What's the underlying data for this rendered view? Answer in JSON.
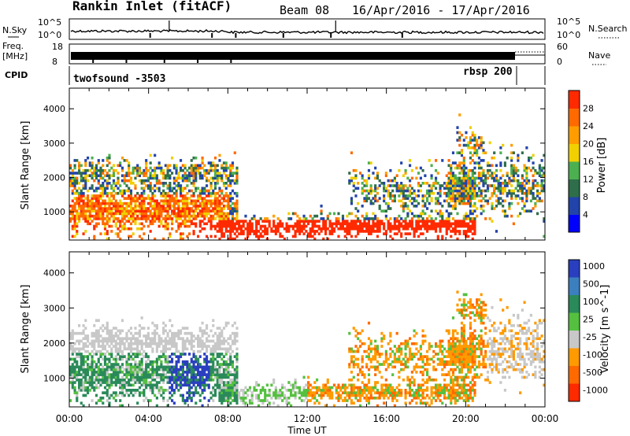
{
  "header": {
    "title": "Rankin Inlet (fitACF)",
    "beam": "Beam 08",
    "date_range": "16/Apr/2016 - 17/Apr/2016"
  },
  "status_panels": {
    "nsky_label": "N.Sky",
    "nsky_ticks": [
      "10^5",
      "10^0"
    ],
    "nsearch_label": "N.Search",
    "nsearch_ticks": [
      "10^5",
      "10^0"
    ],
    "freq_label": "Freq.",
    "freq_unit": "[MHz]",
    "freq_ticks": [
      "18",
      "8"
    ],
    "nave_label": "Nave",
    "nave_ticks": [
      "60",
      "0"
    ],
    "cpid_label": "CPID",
    "cpid_1": "twofsound -3503",
    "cpid_2": "rbsp 200"
  },
  "x_axis": {
    "label": "Time UT",
    "ticks": [
      "00:00",
      "04:00",
      "08:00",
      "12:00",
      "16:00",
      "20:00",
      "00:00"
    ]
  },
  "colors": {
    "power": [
      "#0000ff",
      "#2244aa",
      "#2f6e4a",
      "#4caf50",
      "#f0d000",
      "#ff9d00",
      "#ff6a00",
      "#ff2a00"
    ],
    "velocity": [
      "#2a3fbf",
      "#3c7fbf",
      "#2a8a5a",
      "#55c040",
      "#c8c8c8",
      "#ff9a00",
      "#ff6a00",
      "#ff2a00"
    ]
  },
  "chart_data": [
    {
      "type": "heatmap",
      "ylabel": "Slant Range [km]",
      "xlabel": "",
      "xlim": [
        0,
        24
      ],
      "ylim": [
        180,
        4600
      ],
      "yticks": [
        1000,
        2000,
        3000,
        4000
      ],
      "colorbar": {
        "label": "Power [dB]",
        "ticks": [
          4,
          8,
          12,
          16,
          20,
          24,
          28
        ]
      }
    },
    {
      "type": "heatmap",
      "ylabel": "Slant Range [km]",
      "xlabel": "Time UT",
      "xlim": [
        0,
        24
      ],
      "ylim": [
        180,
        4600
      ],
      "yticks": [
        1000,
        2000,
        3000,
        4000
      ],
      "colorbar": {
        "label": "Velocity [m s^-1]",
        "ticks": [
          1000,
          500,
          100,
          25,
          -25,
          -100,
          -500,
          -1000
        ]
      }
    }
  ]
}
